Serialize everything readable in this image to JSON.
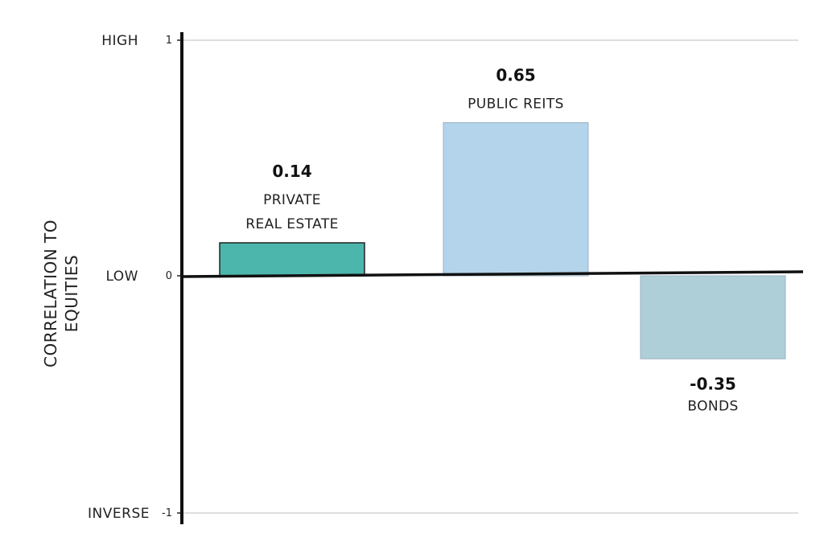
{
  "chart_data": {
    "type": "bar",
    "ylabel": [
      "CORRELATION TO",
      "EQUITIES"
    ],
    "ylim": [
      -1,
      1
    ],
    "grid": true,
    "y_ticks": [
      {
        "value": 1,
        "tick": "1",
        "level": "HIGH"
      },
      {
        "value": 0,
        "tick": "0",
        "level": "LOW"
      },
      {
        "value": -1,
        "tick": "-1",
        "level": "INVERSE"
      }
    ],
    "bars": [
      {
        "category": [
          "PRIVATE",
          "REAL ESTATE"
        ],
        "value": 0.14,
        "label": "0.14",
        "color": "#4db6ac"
      },
      {
        "category": [
          "PUBLIC REITS"
        ],
        "value": 0.65,
        "label": "0.65",
        "color": "#b3d4ea"
      },
      {
        "category": [
          "BONDS"
        ],
        "value": -0.35,
        "label": "-0.35",
        "color": "#aecfd8"
      }
    ]
  }
}
